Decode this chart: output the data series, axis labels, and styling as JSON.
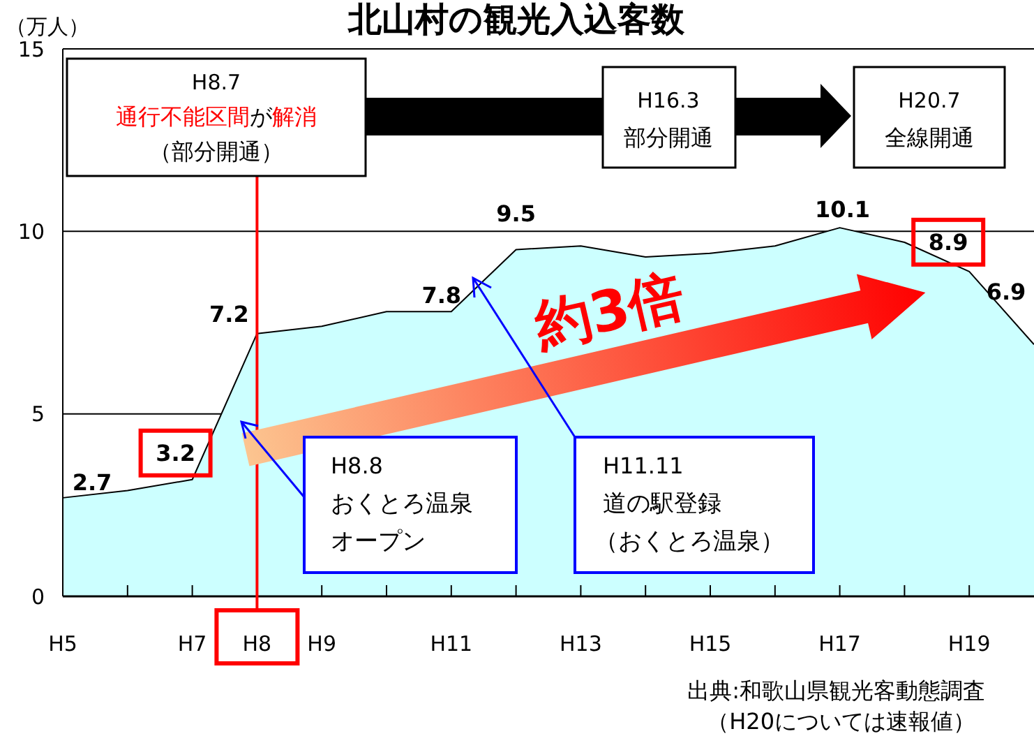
{
  "chart_data": {
    "type": "area",
    "title": "北山村の観光入込客数",
    "ylabel": "（万人）",
    "categories": [
      "H5",
      null,
      "H7",
      "H8",
      "H9",
      null,
      "H11",
      null,
      "H13",
      null,
      "H15",
      null,
      "H17",
      null,
      "H19",
      null
    ],
    "values": [
      2.7,
      2.9,
      3.2,
      7.2,
      7.4,
      7.8,
      7.8,
      9.5,
      9.6,
      9.3,
      9.4,
      9.6,
      10.1,
      9.7,
      8.9,
      6.9
    ],
    "value_labels": [
      "2.7",
      null,
      "3.2",
      "7.2",
      null,
      null,
      "7.8",
      "9.5",
      null,
      null,
      null,
      null,
      "10.1",
      null,
      "8.9",
      "6.9"
    ],
    "color": "#ccffff",
    "ylim": [
      0,
      15
    ],
    "yticks": [
      0,
      5,
      10,
      15
    ],
    "grid": "y",
    "ref_lines": [
      {
        "axis": "x",
        "value": "H8",
        "color": "#ff0000"
      }
    ],
    "annotations": [
      "H8.7",
      "通行不能区間",
      "が",
      "解消",
      "（部分開通）",
      "H16.3",
      "部分開通",
      "H20.7",
      "全線開通",
      "約3倍",
      "H8.8",
      "おくとろ温泉",
      "オープン",
      "H11.11",
      "道の駅登録",
      "（おくとろ温泉）",
      "出典:和歌山県観光客動態調査",
      "（H20については速報値）"
    ]
  }
}
